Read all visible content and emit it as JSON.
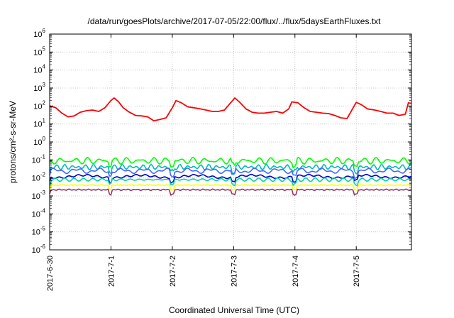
{
  "chart_data": {
    "type": "line",
    "title": "/data/run/goesPlots/archive/2017-07-05/22:00/flux/../flux/5daysEarthFluxes.txt",
    "xlabel": "Coordinated Universal Time (UTC)",
    "ylabel": "protons/cm²-s-sr-MeV",
    "yscale": "log",
    "ylim_exp": [
      -6,
      6
    ],
    "y_tick_base": "10",
    "y_tick_exponents": [
      "-6",
      "-5",
      "-4",
      "-3",
      "-2",
      "-1",
      "0",
      "1",
      "2",
      "3",
      "4",
      "5",
      "6"
    ],
    "x_range_days": [
      0,
      5.9
    ],
    "x_ticks": [
      {
        "label": "2017-6-30",
        "day": 0
      },
      {
        "label": "2017-7-1",
        "day": 1
      },
      {
        "label": "2017-7-2",
        "day": 2
      },
      {
        "label": "2017-7-3",
        "day": 3
      },
      {
        "label": "2017-7-4",
        "day": 4
      },
      {
        "label": "2017-7-5",
        "day": 5
      }
    ],
    "grid": true,
    "series": [
      {
        "color": "#ff0000",
        "note_points_are_day_value_pairs": false,
        "points": [
          [
            0.0,
            100
          ],
          [
            0.1,
            80
          ],
          [
            0.2,
            40
          ],
          [
            0.3,
            25
          ],
          [
            0.4,
            28
          ],
          [
            0.5,
            45
          ],
          [
            0.6,
            55
          ],
          [
            0.7,
            60
          ],
          [
            0.8,
            50
          ],
          [
            0.9,
            80
          ],
          [
            1.0,
            200
          ],
          [
            1.05,
            280
          ],
          [
            1.12,
            180
          ],
          [
            1.2,
            80
          ],
          [
            1.3,
            45
          ],
          [
            1.4,
            30
          ],
          [
            1.5,
            28
          ],
          [
            1.6,
            25
          ],
          [
            1.7,
            15
          ],
          [
            1.8,
            18
          ],
          [
            1.9,
            22
          ],
          [
            2.0,
            80
          ],
          [
            2.06,
            200
          ],
          [
            2.15,
            150
          ],
          [
            2.25,
            90
          ],
          [
            2.35,
            80
          ],
          [
            2.45,
            70
          ],
          [
            2.55,
            60
          ],
          [
            2.65,
            50
          ],
          [
            2.75,
            50
          ],
          [
            2.85,
            60
          ],
          [
            2.95,
            150
          ],
          [
            3.02,
            280
          ],
          [
            3.1,
            160
          ],
          [
            3.2,
            70
          ],
          [
            3.3,
            45
          ],
          [
            3.4,
            40
          ],
          [
            3.5,
            40
          ],
          [
            3.6,
            45
          ],
          [
            3.7,
            50
          ],
          [
            3.8,
            40
          ],
          [
            3.9,
            70
          ],
          [
            3.95,
            170
          ],
          [
            4.05,
            150
          ],
          [
            4.15,
            80
          ],
          [
            4.25,
            50
          ],
          [
            4.35,
            45
          ],
          [
            4.45,
            40
          ],
          [
            4.55,
            38
          ],
          [
            4.65,
            30
          ],
          [
            4.75,
            22
          ],
          [
            4.85,
            20
          ],
          [
            4.95,
            80
          ],
          [
            5.0,
            160
          ],
          [
            5.08,
            120
          ],
          [
            5.18,
            70
          ],
          [
            5.3,
            60
          ],
          [
            5.4,
            50
          ],
          [
            5.5,
            40
          ],
          [
            5.6,
            40
          ],
          [
            5.7,
            30
          ],
          [
            5.8,
            35
          ],
          [
            5.85,
            150
          ],
          [
            5.9,
            140
          ]
        ]
      },
      {
        "color": "#00ff00",
        "base": 0.09,
        "amp": 0.55,
        "freq": 41
      },
      {
        "color": "#00bbbb",
        "base": 0.04,
        "amp": 0.45,
        "freq": 37
      },
      {
        "color": "#4466ff",
        "base": 0.025,
        "amp": 0.45,
        "freq": 43
      },
      {
        "color": "#0000cc",
        "base": 0.012,
        "amp": 0.35,
        "freq": 47
      },
      {
        "color": "#00d4a0",
        "base": 0.008,
        "amp": 0.3,
        "freq": 39
      },
      {
        "color": "#ffff00",
        "base": 0.004,
        "amp": 0.08,
        "freq": 29
      },
      {
        "color": "#993366",
        "base": 0.0022,
        "amp": 0.12,
        "freq": 33
      }
    ]
  }
}
